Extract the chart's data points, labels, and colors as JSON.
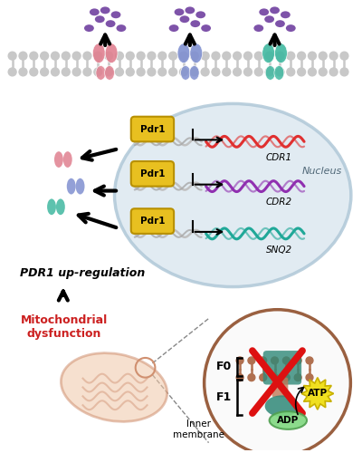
{
  "fig_width": 4.0,
  "fig_height": 5.0,
  "dpi": 100,
  "bg_color": "#ffffff",
  "membrane_dot_color": "#c8c8c8",
  "membrane_line_color": "#e0e0e0",
  "nucleus_fill": "#dce8f0",
  "nucleus_edge": "#b0c8d8",
  "pdr1_fill": "#e8c020",
  "pdr1_edge": "#b89000",
  "cdr1_color": "#e03030",
  "cdr2_color": "#9030b0",
  "snq2_color": "#20a898",
  "transporter1_color": "#e08090",
  "transporter2_color": "#8090d0",
  "transporter3_color": "#40b8a0",
  "drug_color": "#7040a0",
  "mito_fill": "#f0c8a8",
  "mito_edge": "#d09070",
  "atpase_teal": "#308878",
  "atpase_brown": "#b07050",
  "cross_color": "#dd1111",
  "atp_fill": "#f0e020",
  "adp_fill": "#80d880",
  "gray_dna": "#c0c0c0",
  "gray_dna2": "#a8a8a8",
  "text_pdr1_up": "PDR1 up-regulation",
  "text_mito": "Mitochondrial\ndysfunction",
  "text_nucleus": "Nucleus",
  "text_cdr1": "CDR1",
  "text_cdr2": "CDR2",
  "text_snq2": "SNQ2",
  "text_f0": "F0",
  "text_f1": "F1",
  "text_atp": "ATP",
  "text_adp": "ADP",
  "text_inner_mem": "Inner\nmembrane"
}
